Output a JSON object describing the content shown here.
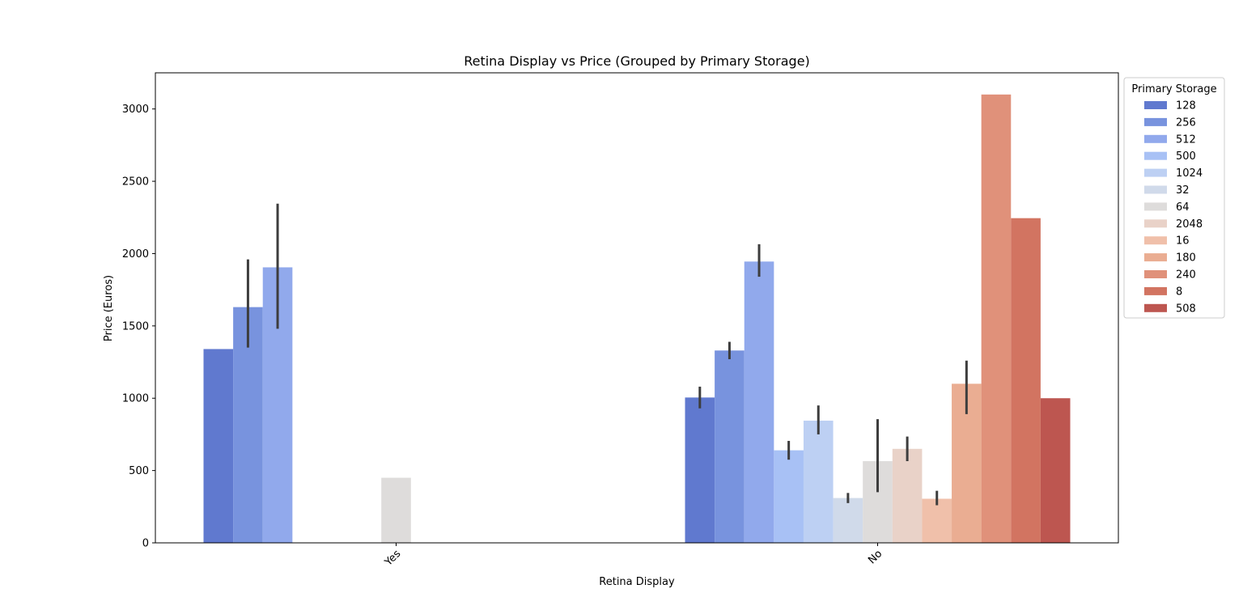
{
  "chart_data": {
    "type": "bar",
    "title": "Retina Display vs Price (Grouped by Primary Storage)",
    "xlabel": "Retina Display",
    "ylabel": "Price (Euros)",
    "ylim": [
      0,
      3250
    ],
    "yticks": [
      0,
      500,
      1000,
      1500,
      2000,
      2500,
      3000
    ],
    "categories": [
      "Yes",
      "No"
    ],
    "grid": false,
    "legend": {
      "title": "Primary Storage",
      "position": "upper-right-outside"
    },
    "series": [
      {
        "name": "128",
        "color": "#6079cf",
        "values": [
          1340,
          1005
        ],
        "ci": [
          null,
          [
            930,
            1080
          ]
        ]
      },
      {
        "name": "256",
        "color": "#7893de",
        "values": [
          1630,
          1330
        ],
        "ci": [
          [
            1350,
            1960
          ],
          [
            1270,
            1390
          ]
        ]
      },
      {
        "name": "512",
        "color": "#91a9ec",
        "values": [
          1905,
          1945
        ],
        "ci": [
          [
            1480,
            2345
          ],
          [
            1840,
            2065
          ]
        ]
      },
      {
        "name": "500",
        "color": "#a8c1f5",
        "values": [
          null,
          640
        ],
        "ci": [
          null,
          [
            575,
            705
          ]
        ]
      },
      {
        "name": "1024",
        "color": "#bdd0f3",
        "values": [
          null,
          845
        ],
        "ci": [
          null,
          [
            750,
            950
          ]
        ]
      },
      {
        "name": "32",
        "color": "#d0daea",
        "values": [
          null,
          310
        ],
        "ci": [
          null,
          [
            275,
            345
          ]
        ]
      },
      {
        "name": "64",
        "color": "#dedcdb",
        "values": [
          450,
          565
        ],
        "ci": [
          null,
          [
            350,
            855
          ]
        ]
      },
      {
        "name": "2048",
        "color": "#e9d2c8",
        "values": [
          null,
          650
        ],
        "ci": [
          null,
          [
            565,
            735
          ]
        ]
      },
      {
        "name": "16",
        "color": "#f0c0aa",
        "values": [
          null,
          305
        ],
        "ci": [
          null,
          [
            260,
            360
          ]
        ]
      },
      {
        "name": "180",
        "color": "#eaad92",
        "values": [
          null,
          1100
        ],
        "ci": [
          null,
          [
            890,
            1260
          ]
        ]
      },
      {
        "name": "240",
        "color": "#e0917a",
        "values": [
          null,
          3100
        ],
        "ci": [
          null,
          null
        ]
      },
      {
        "name": "8",
        "color": "#d27461",
        "values": [
          null,
          2245
        ],
        "ci": [
          null,
          null
        ]
      },
      {
        "name": "508",
        "color": "#bd5650",
        "values": [
          null,
          1000
        ],
        "ci": [
          null,
          null
        ]
      }
    ]
  }
}
